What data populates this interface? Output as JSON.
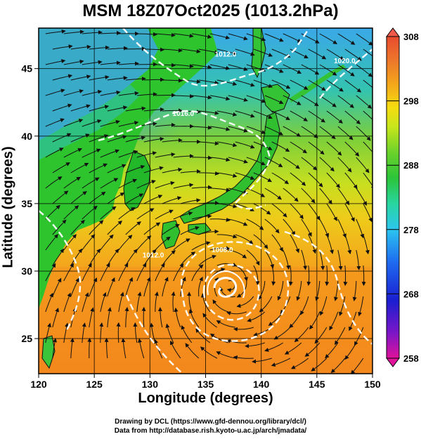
{
  "title": "MSM 18Z07Oct2025 (1013.2hPa)",
  "map": {
    "lon_range": [
      120,
      150
    ],
    "lat_range": [
      22.4,
      48
    ],
    "lon_ticks": [
      120,
      125,
      130,
      135,
      140,
      145,
      150
    ],
    "lat_ticks": [
      25,
      30,
      35,
      40,
      45
    ],
    "xlabel": "Longitude (degrees)",
    "ylabel": "Latitude  (degrees)",
    "field": "temperature (K) shaded with streamlines and white isobar contours",
    "typhoon_center": {
      "lon": 137.2,
      "lat": 29.0
    },
    "contour_labels": [
      {
        "text": "1012.0",
        "lon": 136.8,
        "lat": 45.9
      },
      {
        "text": "1016.0",
        "lon": 133.0,
        "lat": 41.5
      },
      {
        "text": "1020.0",
        "lon": 147.5,
        "lat": 45.4
      },
      {
        "text": "1008.0",
        "lon": 136.5,
        "lat": 31.4
      },
      {
        "text": "1012.0",
        "lon": 130.3,
        "lat": 31.0
      }
    ]
  },
  "colorbar": {
    "min": 258,
    "max": 308,
    "ticks": [
      "308",
      "298",
      "288",
      "278",
      "268",
      "258"
    ],
    "colors": [
      "#e0129a",
      "#7a16c8",
      "#1a1fd0",
      "#1e6cf0",
      "#2cc5f0",
      "#28d6a0",
      "#2cc43a",
      "#6cd22a",
      "#c8e61c",
      "#f6dc10",
      "#f4a81a",
      "#ee7a2a",
      "#e84c30",
      "#f05a4a"
    ]
  },
  "colors": {
    "land": "#2ec42e",
    "cold_sea": "#3fb7e2",
    "warm_sea": "#f38a1e",
    "mid_sea": "#b8dc1a",
    "streamline": "#111111",
    "isobar": "#ffffff"
  },
  "credits": {
    "line1": "Drawing by DCL (https://www.gfd-dennou.org/library/dcl/)",
    "line2": "Data from http://database.rish.kyoto-u.ac.jp/arch/jmadata/"
  }
}
